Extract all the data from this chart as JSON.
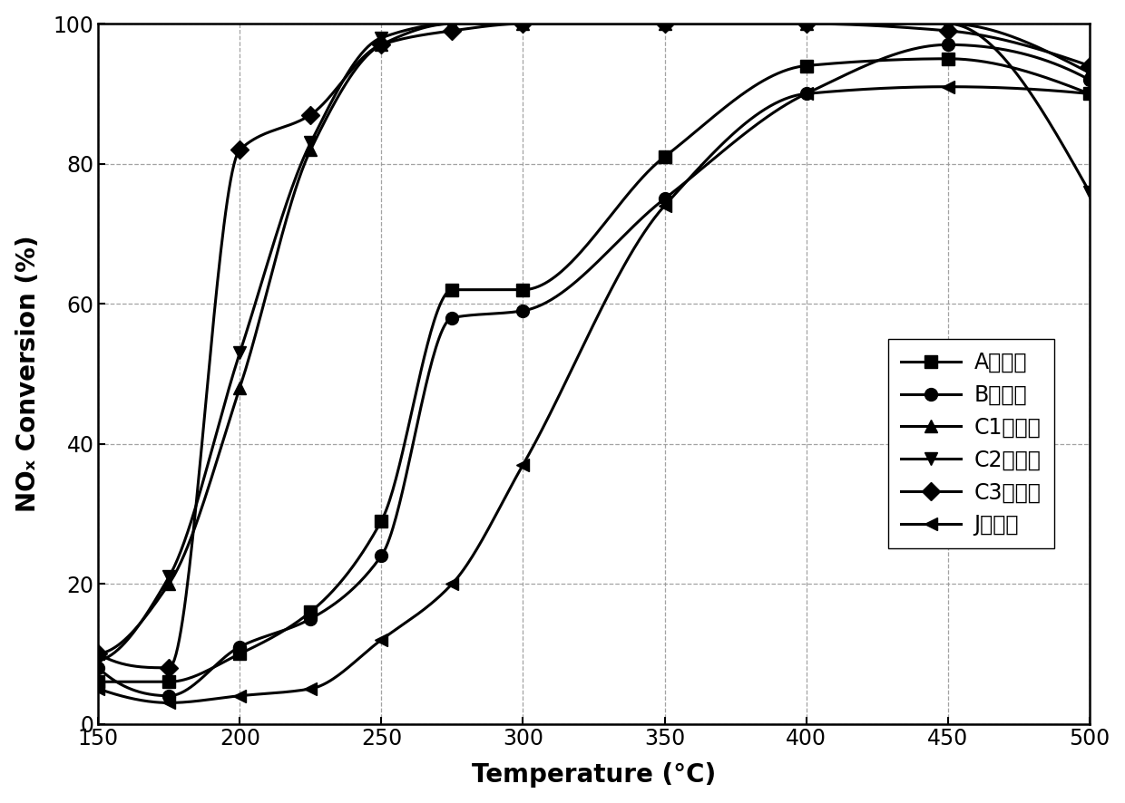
{
  "title": "",
  "xlabel": "Temperature (°C)",
  "ylabel": "NOₓ Conversion (%)",
  "xlim": [
    150,
    500
  ],
  "ylim": [
    0,
    100
  ],
  "xticks": [
    150,
    200,
    250,
    300,
    350,
    400,
    450,
    500
  ],
  "yticks": [
    0,
    20,
    40,
    60,
    80,
    100
  ],
  "series": [
    {
      "label": "A催化剑",
      "marker": "s",
      "x": [
        150,
        175,
        200,
        225,
        250,
        275,
        300,
        350,
        400,
        450,
        500
      ],
      "y": [
        6,
        6,
        10,
        16,
        29,
        62,
        62,
        81,
        94,
        95,
        90
      ]
    },
    {
      "label": "B催化剑",
      "marker": "o",
      "x": [
        150,
        175,
        200,
        225,
        250,
        275,
        300,
        350,
        400,
        450,
        500
      ],
      "y": [
        8,
        4,
        11,
        15,
        24,
        58,
        59,
        75,
        90,
        97,
        92
      ]
    },
    {
      "label": "C1催化剑",
      "marker": "^",
      "x": [
        150,
        175,
        200,
        225,
        250,
        275,
        300,
        350,
        400,
        450,
        500
      ],
      "y": [
        10,
        20,
        48,
        82,
        97,
        100,
        100,
        100,
        100,
        100,
        93
      ]
    },
    {
      "label": "C2催化剑",
      "marker": "v",
      "x": [
        150,
        175,
        200,
        225,
        250,
        275,
        300,
        350,
        400,
        450,
        500
      ],
      "y": [
        9,
        21,
        53,
        83,
        98,
        100,
        100,
        100,
        100,
        100,
        76
      ]
    },
    {
      "label": "C3催化剑",
      "marker": "D",
      "x": [
        150,
        175,
        200,
        225,
        250,
        275,
        300,
        350,
        400,
        450,
        500
      ],
      "y": [
        10,
        8,
        82,
        87,
        97,
        99,
        100,
        100,
        100,
        99,
        94
      ]
    },
    {
      "label": "J催化剑",
      "marker": "<",
      "x": [
        150,
        175,
        200,
        225,
        250,
        275,
        300,
        350,
        400,
        450,
        500
      ],
      "y": [
        5,
        3,
        4,
        5,
        12,
        20,
        37,
        74,
        90,
        91,
        90
      ]
    }
  ],
  "line_color": "#000000",
  "line_width": 2.2,
  "marker_size": 10,
  "grid_color": "#999999",
  "grid_style": "--",
  "background_color": "#ffffff",
  "legend_fontsize": 17,
  "axis_fontsize": 20,
  "tick_fontsize": 17
}
